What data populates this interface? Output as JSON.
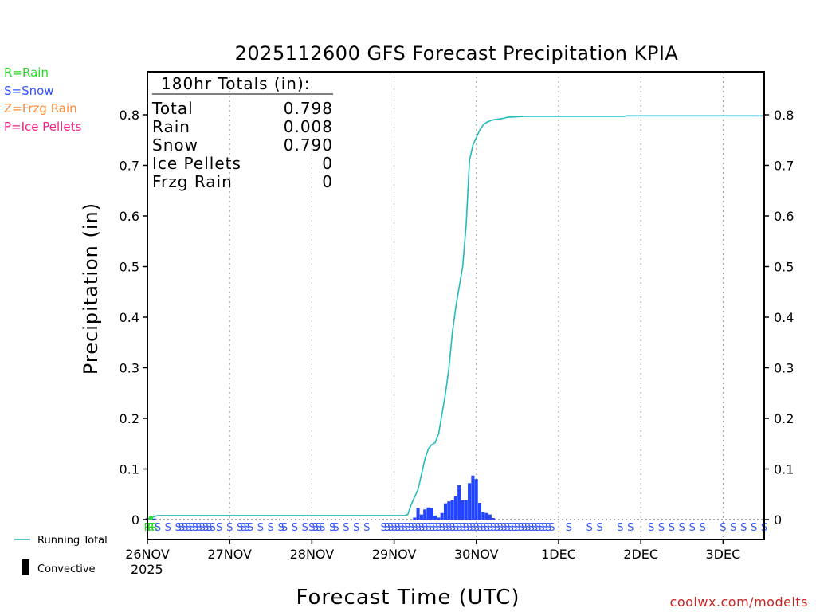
{
  "chart_data": {
    "type": "bar",
    "title": "2025112600 GFS Forecast Precipitation KPIA",
    "xlabel": "Forecast Time (UTC)",
    "ylabel": "Precipitation (in)",
    "ylim": [
      0,
      0.88
    ],
    "y_ticks": [
      "0",
      "0.1",
      "0.2",
      "0.3",
      "0.4",
      "0.5",
      "0.6",
      "0.7",
      "0.8"
    ],
    "y_tick_values": [
      0,
      0.1,
      0.2,
      0.3,
      0.4,
      0.5,
      0.6,
      0.7,
      0.8
    ],
    "x_range_hours": [
      0,
      180
    ],
    "x_ticks": [
      {
        "label": "26NOV",
        "hour": 0
      },
      {
        "label": "27NOV",
        "hour": 24
      },
      {
        "label": "28NOV",
        "hour": 48
      },
      {
        "label": "29NOV",
        "hour": 72
      },
      {
        "label": "30NOV",
        "hour": 96
      },
      {
        "label": "1DEC",
        "hour": 120
      },
      {
        "label": "2DEC",
        "hour": 144
      },
      {
        "label": "3DEC",
        "hour": 168
      }
    ],
    "year_label": "2025",
    "grid": "vertical dotted at day boundaries",
    "legend_types": [
      {
        "text": "R=Rain",
        "color": "#22dd22"
      },
      {
        "text": "S=Snow",
        "color": "#3355ff"
      },
      {
        "text": "Z=Frzg Rain",
        "color": "#ff8833"
      },
      {
        "text": "P=Ice Pellets",
        "color": "#ee2288"
      }
    ],
    "legend_series": {
      "running_total": "Running Total",
      "convective": "Convective"
    },
    "totals_box": {
      "title": "180hr Totals (in):",
      "rows": [
        {
          "label": "Total",
          "value": "0.798"
        },
        {
          "label": "Rain",
          "value": "0.008"
        },
        {
          "label": "Snow",
          "value": "0.790"
        },
        {
          "label": "Ice Pellets",
          "value": "0"
        },
        {
          "label": "Frzg Rain",
          "value": "0"
        }
      ]
    },
    "series": [
      {
        "name": "Running Total",
        "type": "line",
        "color": "#22bbbb",
        "x_hours": [
          0,
          1,
          2,
          3,
          75,
          76,
          77,
          78,
          79,
          80,
          81,
          82,
          83,
          84,
          85,
          86,
          87,
          88,
          89,
          90,
          91,
          92,
          93,
          94,
          95,
          96,
          97,
          98,
          99,
          100,
          101,
          102,
          103,
          104,
          105,
          110,
          115,
          120,
          130,
          139,
          140,
          150,
          160,
          170,
          180
        ],
        "values": [
          0,
          0.003,
          0.006,
          0.008,
          0.008,
          0.01,
          0.03,
          0.045,
          0.06,
          0.09,
          0.12,
          0.14,
          0.148,
          0.152,
          0.17,
          0.21,
          0.25,
          0.3,
          0.37,
          0.42,
          0.46,
          0.5,
          0.58,
          0.71,
          0.74,
          0.755,
          0.77,
          0.78,
          0.785,
          0.788,
          0.79,
          0.791,
          0.792,
          0.793,
          0.795,
          0.797,
          0.797,
          0.797,
          0.797,
          0.797,
          0.798,
          0.798,
          0.798,
          0.798,
          0.798
        ]
      },
      {
        "name": "Precipitation",
        "type": "bar",
        "color": "#2244ff",
        "x_hours": [
          0,
          1,
          2,
          78,
          79,
          80,
          81,
          82,
          83,
          84,
          85,
          86,
          87,
          88,
          89,
          90,
          91,
          92,
          93,
          94,
          95,
          96,
          97,
          98,
          99,
          100,
          101
        ],
        "values": [
          0.003,
          0.003,
          0.002,
          0.004,
          0.023,
          0.01,
          0.02,
          0.024,
          0.023,
          0.008,
          0.004,
          0.013,
          0.032,
          0.036,
          0.038,
          0.046,
          0.068,
          0.038,
          0.038,
          0.072,
          0.087,
          0.08,
          0.033,
          0.015,
          0.013,
          0.01,
          0.003
        ]
      }
    ],
    "ptype_markers": {
      "rain_hours": [
        0,
        1,
        2
      ],
      "rain_letter": "R",
      "snow_letter": "S",
      "snow_hours": [
        3,
        6,
        9,
        10,
        11,
        12,
        13,
        14,
        15,
        16,
        17,
        18,
        19,
        21,
        24,
        27,
        28,
        29,
        30,
        33,
        36,
        39,
        40,
        43,
        46,
        48,
        49,
        50,
        51,
        54,
        55,
        58,
        61,
        64,
        69,
        70,
        71,
        72,
        73,
        74,
        75,
        76,
        77,
        78,
        79,
        80,
        81,
        82,
        83,
        84,
        85,
        86,
        87,
        88,
        89,
        90,
        91,
        92,
        93,
        94,
        95,
        96,
        97,
        98,
        99,
        100,
        101,
        102,
        103,
        104,
        105,
        106,
        107,
        108,
        109,
        110,
        111,
        112,
        113,
        114,
        115,
        116,
        117,
        118,
        123,
        129,
        132,
        138,
        141,
        147,
        150,
        153,
        156,
        159,
        162,
        168,
        171,
        174,
        177,
        180
      ]
    },
    "credit": "coolwx.com/modelts"
  }
}
